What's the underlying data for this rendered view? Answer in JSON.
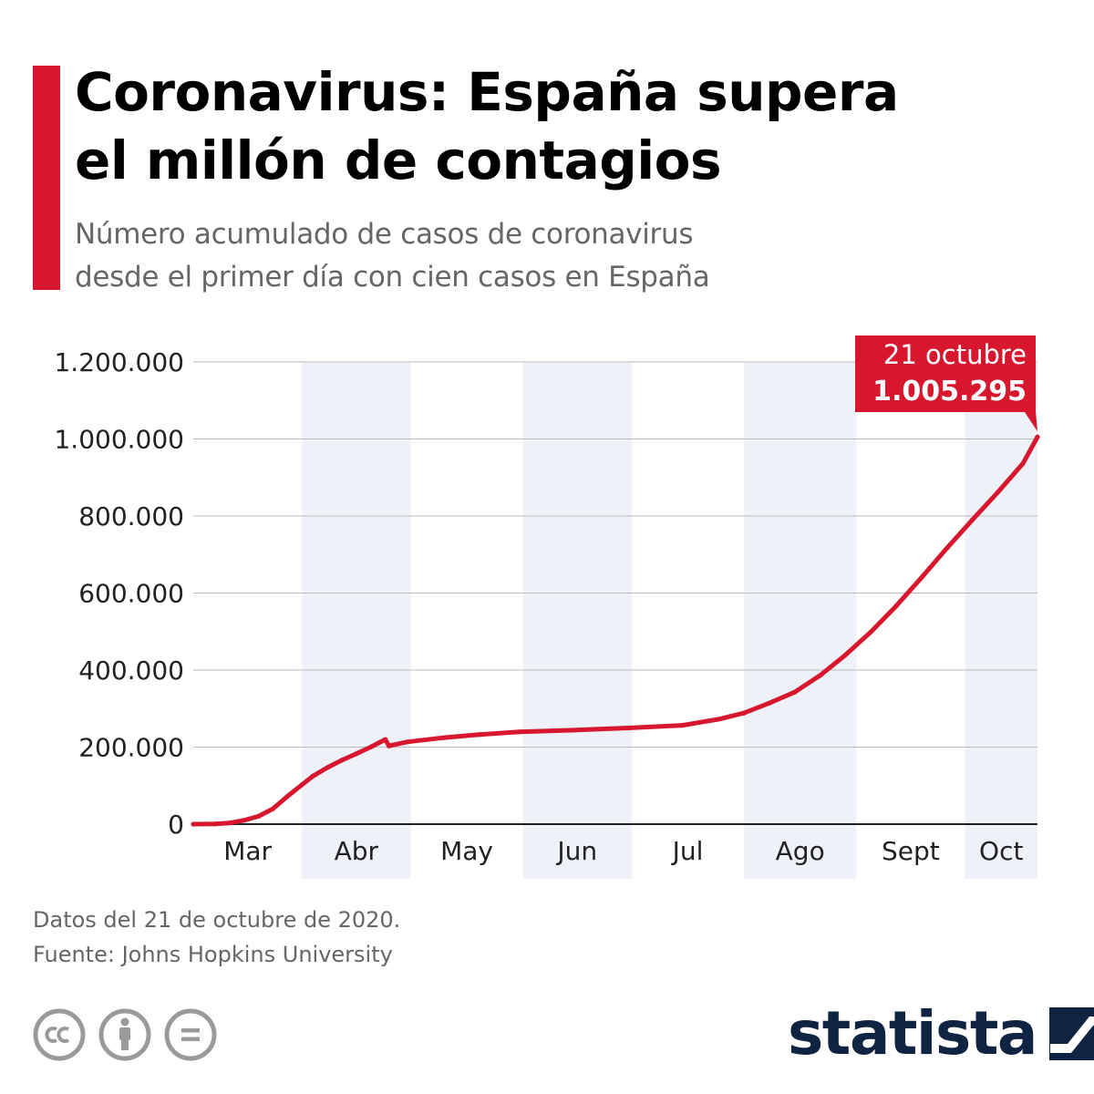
{
  "header": {
    "title_line1": "Coronavirus: España supera",
    "title_line2": "el millón de contagios",
    "subtitle_line1": "Número acumulado de casos de coronavirus",
    "subtitle_line2": "desde el primer día con cien casos en España"
  },
  "colors": {
    "accent": "#d7172d",
    "line": "#d7172d",
    "band": "#eef1f8",
    "grid": "#bbbbbb",
    "text": "#222222",
    "brand": "#0f2342"
  },
  "chart_data": {
    "type": "line",
    "series": [
      {
        "values": [
          {
            "x": "2020-03-02",
            "y": 0
          },
          {
            "x": "2020-03-08",
            "y": 673
          },
          {
            "x": "2020-03-12",
            "y": 3004
          },
          {
            "x": "2020-03-16",
            "y": 9942
          },
          {
            "x": "2020-03-20",
            "y": 20410
          },
          {
            "x": "2020-03-24",
            "y": 39885
          },
          {
            "x": "2020-03-28",
            "y": 72248
          },
          {
            "x": "2020-04-01",
            "y": 102136
          },
          {
            "x": "2020-04-04",
            "y": 124736
          },
          {
            "x": "2020-04-08",
            "y": 146690
          },
          {
            "x": "2020-04-12",
            "y": 166019
          },
          {
            "x": "2020-04-16",
            "y": 182816
          },
          {
            "x": "2020-04-20",
            "y": 200210
          },
          {
            "x": "2020-04-24",
            "y": 219764
          },
          {
            "x": "2020-04-25",
            "y": 202990
          },
          {
            "x": "2020-04-30",
            "y": 213435
          },
          {
            "x": "2020-05-10",
            "y": 224390
          },
          {
            "x": "2020-05-20",
            "y": 232555
          },
          {
            "x": "2020-05-31",
            "y": 239638
          },
          {
            "x": "2020-06-15",
            "y": 244109
          },
          {
            "x": "2020-06-30",
            "y": 249659
          },
          {
            "x": "2020-07-15",
            "y": 256619
          },
          {
            "x": "2020-07-25",
            "y": 272421
          },
          {
            "x": "2020-08-01",
            "y": 288522
          },
          {
            "x": "2020-08-08",
            "y": 314362
          },
          {
            "x": "2020-08-15",
            "y": 342813
          },
          {
            "x": "2020-08-22",
            "y": 386054
          },
          {
            "x": "2020-08-29",
            "y": 439286
          },
          {
            "x": "2020-09-05",
            "y": 498989
          },
          {
            "x": "2020-09-12",
            "y": 566326
          },
          {
            "x": "2020-09-19",
            "y": 640040
          },
          {
            "x": "2020-09-26",
            "y": 716481
          },
          {
            "x": "2020-10-03",
            "y": 789932
          },
          {
            "x": "2020-10-10",
            "y": 861112
          },
          {
            "x": "2020-10-17",
            "y": 936560
          },
          {
            "x": "2020-10-21",
            "y": 1005295
          }
        ]
      }
    ],
    "xlabel": "",
    "ylabel": "",
    "ylim": [
      0,
      1200000
    ],
    "yticks": [
      0,
      200000,
      400000,
      600000,
      800000,
      1000000,
      1200000
    ],
    "ytick_labels": [
      "0",
      "200.000",
      "400.000",
      "600.000",
      "800.000",
      "1.000.000",
      "1.200.000"
    ],
    "xlim": [
      "2020-03-02",
      "2020-10-21"
    ],
    "months": [
      {
        "label": "Mar",
        "start": "2020-03-02",
        "end": "2020-04-01",
        "shaded": false
      },
      {
        "label": "Abr",
        "start": "2020-04-01",
        "end": "2020-05-01",
        "shaded": true
      },
      {
        "label": "May",
        "start": "2020-05-01",
        "end": "2020-06-01",
        "shaded": false
      },
      {
        "label": "Jun",
        "start": "2020-06-01",
        "end": "2020-07-01",
        "shaded": true
      },
      {
        "label": "Jul",
        "start": "2020-07-01",
        "end": "2020-08-01",
        "shaded": false
      },
      {
        "label": "Ago",
        "start": "2020-08-01",
        "end": "2020-09-01",
        "shaded": true
      },
      {
        "label": "Sept",
        "start": "2020-09-01",
        "end": "2020-10-01",
        "shaded": false
      },
      {
        "label": "Oct",
        "start": "2020-10-01",
        "end": "2020-10-21",
        "shaded": true
      }
    ],
    "grid": true,
    "annotation": {
      "x": "2020-10-21",
      "y": 1005295,
      "line1": "21 octubre",
      "line2": "1.005.295"
    }
  },
  "footer": {
    "note": "Datos del 21 de octubre de 2020.",
    "source": "Fuente: Johns Hopkins University",
    "brand": "statista"
  },
  "icons": {
    "license": [
      "cc-icon",
      "attribution-icon",
      "no-derivatives-icon"
    ],
    "brand": "statista-logo-icon"
  }
}
